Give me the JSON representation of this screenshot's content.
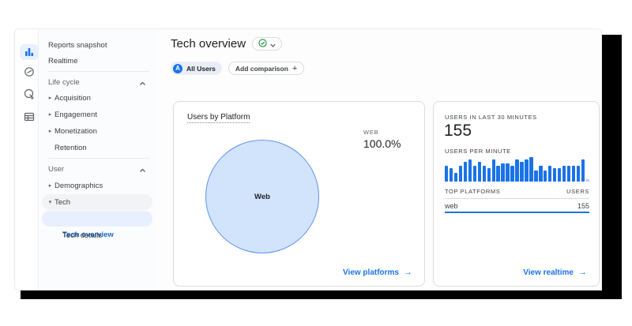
{
  "header": {
    "title": "Tech overview"
  },
  "filters": {
    "all_users": "All Users",
    "all_users_initial": "A",
    "add_comparison": "Add comparison"
  },
  "icons": {
    "arrow_right": "→",
    "plus": "+",
    "collapsed_caret": "▸",
    "expanded_caret": "▾",
    "rail": [
      "reports-icon",
      "explore-icon",
      "advertising-icon",
      "library-icon"
    ]
  },
  "sidebar": {
    "items": [
      {
        "label": "Reports snapshot"
      },
      {
        "label": "Realtime"
      },
      {
        "label": "Life cycle",
        "type": "section",
        "state": "expanded"
      },
      {
        "label": "Acquisition",
        "state": "collapsed"
      },
      {
        "label": "Engagement",
        "state": "collapsed"
      },
      {
        "label": "Monetization",
        "state": "collapsed"
      },
      {
        "label": "Retention"
      },
      {
        "label": "User",
        "type": "section",
        "state": "expanded"
      },
      {
        "label": "Demographics",
        "state": "collapsed"
      },
      {
        "label": "Tech",
        "state": "expanded"
      },
      {
        "label": "Tech overview",
        "state": "selected"
      },
      {
        "label": "Tech details"
      }
    ]
  },
  "platform_card": {
    "title": "Users by Platform",
    "pie_label": "Web",
    "legend_label": "WEB",
    "legend_value": "100.0%",
    "link": "View platforms"
  },
  "realtime_card": {
    "users_30min_label": "USERS IN LAST 30 MINUTES",
    "users_30min_value": "155",
    "per_minute_label": "USERS PER MINUTE",
    "table_header_left": "TOP PLATFORMS",
    "table_header_right": "USERS",
    "row_platform": "web",
    "row_users": "155",
    "link": "View realtime"
  },
  "colors": {
    "accent": "#1a73e8",
    "selected_text": "#1967d2",
    "selected_bg": "#e8f0fe",
    "pie_fill": "#d2e3fc",
    "pie_stroke": "#5e93ee",
    "check_green": "#1e8e3e",
    "shadow_frame": "#000000"
  },
  "chart_data": [
    {
      "type": "pie",
      "title": "Users by Platform",
      "labels": [
        "Web"
      ],
      "values": [
        100.0
      ],
      "unit": "percent",
      "legend": [
        {
          "label": "WEB",
          "value": "100.0%"
        }
      ]
    },
    {
      "type": "bar",
      "title": "USERS PER MINUTE",
      "x_desc": "one bar per minute, last 30 minutes (oldest to newest)",
      "values": [
        7,
        6,
        4,
        7,
        9,
        10,
        7,
        9,
        7,
        6,
        10,
        7,
        8,
        8,
        7,
        10,
        9,
        10,
        11,
        5,
        7,
        5,
        7,
        6,
        6,
        7,
        7,
        7,
        7,
        10,
        1
      ],
      "ylim": [
        0,
        12
      ],
      "bar_color": "#1a73e8",
      "last_bar_color": "#aecbfa",
      "grid": false,
      "legend_position": "none"
    }
  ]
}
